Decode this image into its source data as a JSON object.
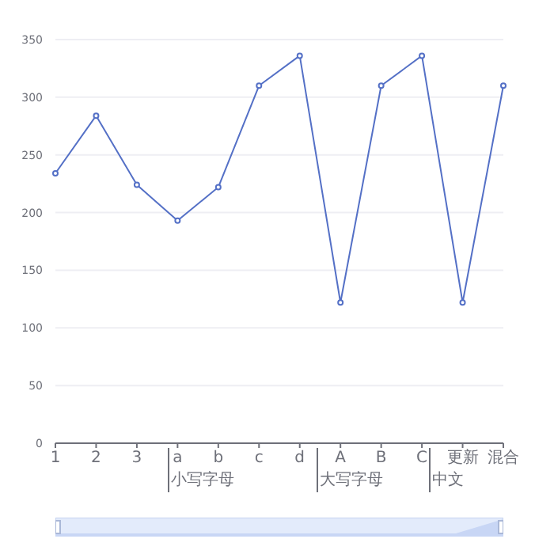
{
  "chart_data": {
    "type": "line",
    "categories": [
      "1",
      "2",
      "3",
      "a",
      "b",
      "c",
      "d",
      "A",
      "B",
      "C",
      "更新",
      "混合"
    ],
    "series": [
      {
        "color": "#5470c6",
        "values": [
          234,
          284,
          224,
          193,
          222,
          310,
          336,
          122,
          310,
          336,
          122,
          310
        ]
      }
    ],
    "ylim": [
      0,
      350
    ],
    "yticks": [
      0,
      50,
      100,
      150,
      200,
      250,
      300,
      350
    ],
    "grid": "y",
    "marker": "circle",
    "legend": false,
    "annotations": [
      "小写字母",
      "大写字母",
      "中文"
    ]
  }
}
